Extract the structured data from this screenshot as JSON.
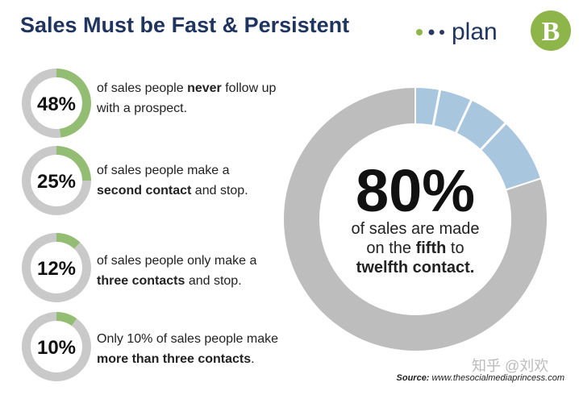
{
  "title": "Sales Must be Fast & Persistent",
  "logo": {
    "text": "plan",
    "letter": "B"
  },
  "source": {
    "label": "Source:",
    "url": "www.thesocialmediaprincess.com"
  },
  "watermark": "知乎 @刘欢",
  "chart_data": [
    {
      "type": "donut",
      "values": [
        48
      ],
      "value_labels": [
        "48%"
      ],
      "color": "#93bd73",
      "track_color": "#c9c9c9",
      "text": [
        {
          "t": "of sales people "
        },
        {
          "t": "never",
          "bold": true
        },
        {
          "t": " follow up with a prospect."
        }
      ]
    },
    {
      "type": "donut",
      "values": [
        25
      ],
      "value_labels": [
        "25%"
      ],
      "color": "#93bd73",
      "track_color": "#c9c9c9",
      "text": [
        {
          "t": "of sales people make a "
        },
        {
          "t": "second contact",
          "bold": true
        },
        {
          "t": " and stop."
        }
      ]
    },
    {
      "type": "donut",
      "values": [
        12
      ],
      "value_labels": [
        "12%"
      ],
      "color": "#93bd73",
      "track_color": "#c9c9c9",
      "text": [
        {
          "t": "of sales people only make a "
        },
        {
          "t": "three contacts",
          "bold": true
        },
        {
          "t": " and stop."
        }
      ]
    },
    {
      "type": "donut",
      "values": [
        10
      ],
      "value_labels": [
        "10%"
      ],
      "color": "#93bd73",
      "track_color": "#c9c9c9",
      "text": [
        {
          "t": "Only 10% of sales people make "
        },
        {
          "t": "more than three contacts",
          "bold": true
        },
        {
          "t": "."
        }
      ]
    },
    {
      "type": "donut",
      "values": [
        80
      ],
      "value_labels": [
        "80%"
      ],
      "color": "#bdbdbd",
      "track_color": "#a9c6df",
      "text": [
        {
          "t": "of sales are made on the "
        },
        {
          "t": "fifth",
          "bold": true
        },
        {
          "t": " to "
        },
        {
          "t": "twelfth contact.",
          "bold": true
        }
      ]
    }
  ]
}
